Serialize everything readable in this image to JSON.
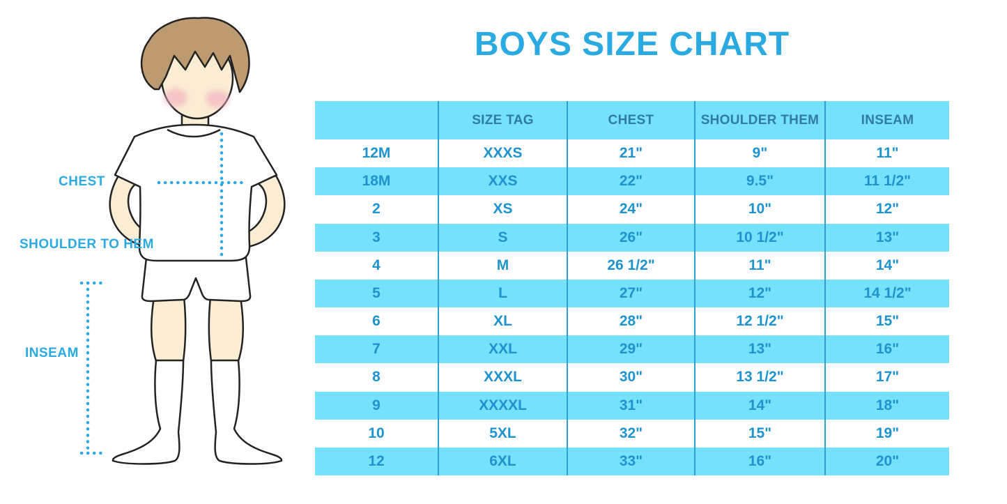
{
  "title": "BOYS SIZE CHART",
  "figure": {
    "description": "cartoon boy in white t-shirt, shorts and knee socks with measurement guides",
    "labels": {
      "chest": "CHEST",
      "shoulder_to_hem": "SHOULDER TO HEM",
      "inseam": "INSEAM"
    }
  },
  "colors": {
    "accent_blue": "#2BA9E1",
    "row_light_blue": "#76E1FB",
    "column_divider_blue": "#2B9FD6",
    "header_text_blue": "#2F7BA3",
    "cell_text_blue": "#1E93CE",
    "hair_brown": "#BD9A70",
    "skin": "#FAEDD3"
  },
  "chart_data": {
    "type": "table",
    "title": "BOYS SIZE CHART",
    "columns": [
      "",
      "SIZE TAG",
      "CHEST",
      "SHOULDER THEM",
      "INSEAM"
    ],
    "rows": [
      [
        "12M",
        "XXXS",
        "21\"",
        "9\"",
        "11\""
      ],
      [
        "18M",
        "XXS",
        "22\"",
        "9.5\"",
        "11 1/2\""
      ],
      [
        "2",
        "XS",
        "24\"",
        "10\"",
        "12\""
      ],
      [
        "3",
        "S",
        "26\"",
        "10 1/2\"",
        "13\""
      ],
      [
        "4",
        "M",
        "26 1/2\"",
        "11\"",
        "14\""
      ],
      [
        "5",
        "L",
        "27\"",
        "12\"",
        "14 1/2\""
      ],
      [
        "6",
        "XL",
        "28\"",
        "12 1/2\"",
        "15\""
      ],
      [
        "7",
        "XXL",
        "29\"",
        "13\"",
        "16\""
      ],
      [
        "8",
        "XXXL",
        "30\"",
        "13 1/2\"",
        "17\""
      ],
      [
        "9",
        "XXXXL",
        "31\"",
        "14\"",
        "18\""
      ],
      [
        "10",
        "5XL",
        "32\"",
        "15\"",
        "19\""
      ],
      [
        "12",
        "6XL",
        "33\"",
        "16\"",
        "20\""
      ]
    ]
  }
}
